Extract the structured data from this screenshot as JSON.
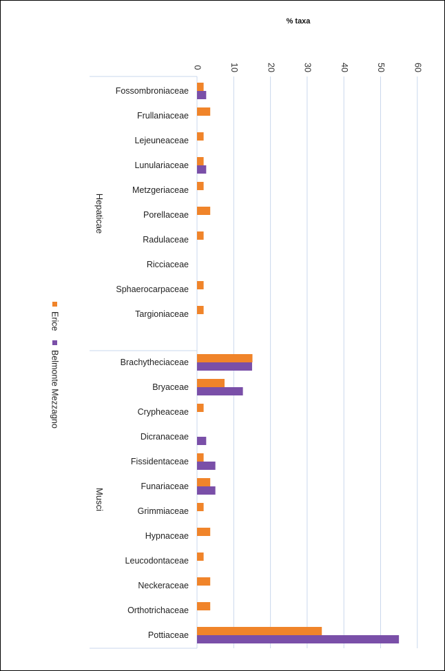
{
  "chart_data": {
    "type": "bar",
    "orientation": "horizontal",
    "title": "",
    "xlabel": "% taxa",
    "ylabel": "",
    "xlim": [
      0,
      60
    ],
    "xticks": [
      0,
      10,
      20,
      30,
      40,
      50,
      60
    ],
    "grid": true,
    "legend_position": "left",
    "groups": [
      {
        "name": "Hepaticae",
        "start": 0,
        "end": 9
      },
      {
        "name": "Musci",
        "start": 10,
        "end": 21
      }
    ],
    "categories": [
      "Fossombroniaceae",
      "Frullaniaceae",
      "Lejeuneaceae",
      "Lunulariaceae",
      "Metzgeriaceae",
      "Porellaceae",
      "Radulaceae",
      "Ricciaceae",
      "Sphaerocarpaceae",
      "Targioniaceae",
      "Brachytheciaceae",
      "Bryaceae",
      "Crypheaceae",
      "Dicranaceae",
      "Fissidentaceae",
      "Funariaceae",
      "Grimmiaceae",
      "Hypnaceae",
      "Leucodontaceae",
      "Neckeraceae",
      "Orthotrichaceae",
      "Pottiaceae"
    ],
    "series": [
      {
        "name": "Erice",
        "color": "#f0842a",
        "values": [
          1.8,
          3.6,
          1.8,
          1.8,
          1.8,
          3.6,
          1.8,
          0,
          1.8,
          1.8,
          15.1,
          7.5,
          1.8,
          0,
          1.8,
          3.6,
          1.8,
          3.6,
          1.8,
          3.6,
          3.6,
          34.0
        ]
      },
      {
        "name": "Belmonte Mezzagno",
        "color": "#7a4fa8",
        "values": [
          2.5,
          0,
          0,
          2.5,
          0,
          0,
          0,
          0,
          0,
          0,
          15.0,
          12.5,
          0,
          2.5,
          5.0,
          5.0,
          0,
          0,
          0,
          0,
          0,
          55.0
        ]
      }
    ]
  }
}
